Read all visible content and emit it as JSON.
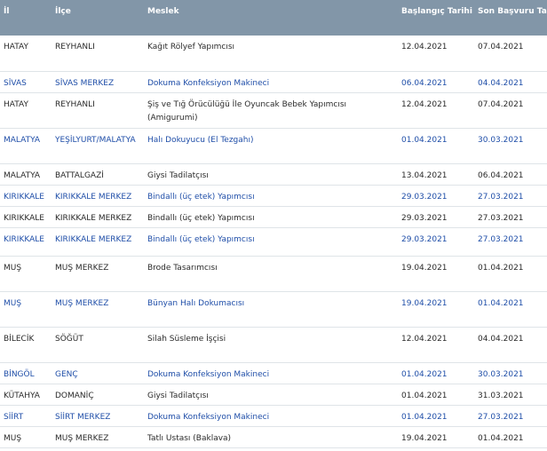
{
  "table": {
    "headers": {
      "il": "İl",
      "ilce": "İlçe",
      "meslek": "Meslek",
      "baslangic": "Başlangıç Tarihi",
      "son_basvuru": "Son Başvuru Tarihi"
    },
    "rows": [
      {
        "il": "HATAY",
        "ilce": "REYHANLI",
        "meslek": "Kağıt Rölyef Yapımcısı",
        "baslangic": "12.04.2021",
        "son_basvuru": "07.04.2021"
      },
      {
        "il": "SİVAS",
        "ilce": "SİVAS MERKEZ",
        "meslek": "Dokuma Konfeksiyon Makineci",
        "baslangic": "06.04.2021",
        "son_basvuru": "04.04.2021"
      },
      {
        "il": "HATAY",
        "ilce": "REYHANLI",
        "meslek": "Şiş ve Tığ Örücülüğü İle Oyuncak Bebek Yapımcısı (Amigurumi)",
        "baslangic": "12.04.2021",
        "son_basvuru": "07.04.2021"
      },
      {
        "il": "MALATYA",
        "ilce": "YEŞİLYURT/MALATYA",
        "meslek": "Halı Dokuyucu (El Tezgahı)",
        "baslangic": "01.04.2021",
        "son_basvuru": "30.03.2021"
      },
      {
        "il": "MALATYA",
        "ilce": "BATTALGAZİ",
        "meslek": "Giysi Tadilatçısı",
        "baslangic": "13.04.2021",
        "son_basvuru": "06.04.2021"
      },
      {
        "il": "KIRIKKALE",
        "ilce": "KIRIKKALE MERKEZ",
        "meslek": "Bindallı (üç etek) Yapımcısı",
        "baslangic": "29.03.2021",
        "son_basvuru": "27.03.2021"
      },
      {
        "il": "KIRIKKALE",
        "ilce": "KIRIKKALE MERKEZ",
        "meslek": "Bindallı (üç etek) Yapımcısı",
        "baslangic": "29.03.2021",
        "son_basvuru": "27.03.2021"
      },
      {
        "il": "KIRIKKALE",
        "ilce": "KIRIKKALE MERKEZ",
        "meslek": "Bindallı (üç etek) Yapımcısı",
        "baslangic": "29.03.2021",
        "son_basvuru": "27.03.2021"
      },
      {
        "il": "MUŞ",
        "ilce": "MUŞ MERKEZ",
        "meslek": "Brode Tasarımcısı",
        "baslangic": "19.04.2021",
        "son_basvuru": "01.04.2021"
      },
      {
        "il": "MUŞ",
        "ilce": "MUŞ MERKEZ",
        "meslek": "Bünyan Halı Dokumacısı",
        "baslangic": "19.04.2021",
        "son_basvuru": "01.04.2021"
      },
      {
        "il": "BİLECİK",
        "ilce": "SÖĞÜT",
        "meslek": "Silah Süsleme İşçisi",
        "baslangic": "12.04.2021",
        "son_basvuru": "04.04.2021"
      },
      {
        "il": "BİNGÖL",
        "ilce": "GENÇ",
        "meslek": "Dokuma Konfeksiyon Makineci",
        "baslangic": "01.04.2021",
        "son_basvuru": "30.03.2021"
      },
      {
        "il": "KÜTAHYA",
        "ilce": "DOMANİÇ",
        "meslek": "Giysi Tadilatçısı",
        "baslangic": "01.04.2021",
        "son_basvuru": "31.03.2021"
      },
      {
        "il": "SİİRT",
        "ilce": "SİİRT MERKEZ",
        "meslek": "Dokuma Konfeksiyon Makineci",
        "baslangic": "01.04.2021",
        "son_basvuru": "27.03.2021"
      },
      {
        "il": "MUŞ",
        "ilce": "MUŞ MERKEZ",
        "meslek": "Tatlı Ustası (Baklava)",
        "baslangic": "19.04.2021",
        "son_basvuru": "01.04.2021"
      }
    ]
  },
  "colors": {
    "header_bg": "#8296a8",
    "header_text": "#ffffff",
    "row_text_dark": "#2a2a2a",
    "row_text_blue": "#1f4ea8",
    "row_divider": "#dfe4e8"
  }
}
